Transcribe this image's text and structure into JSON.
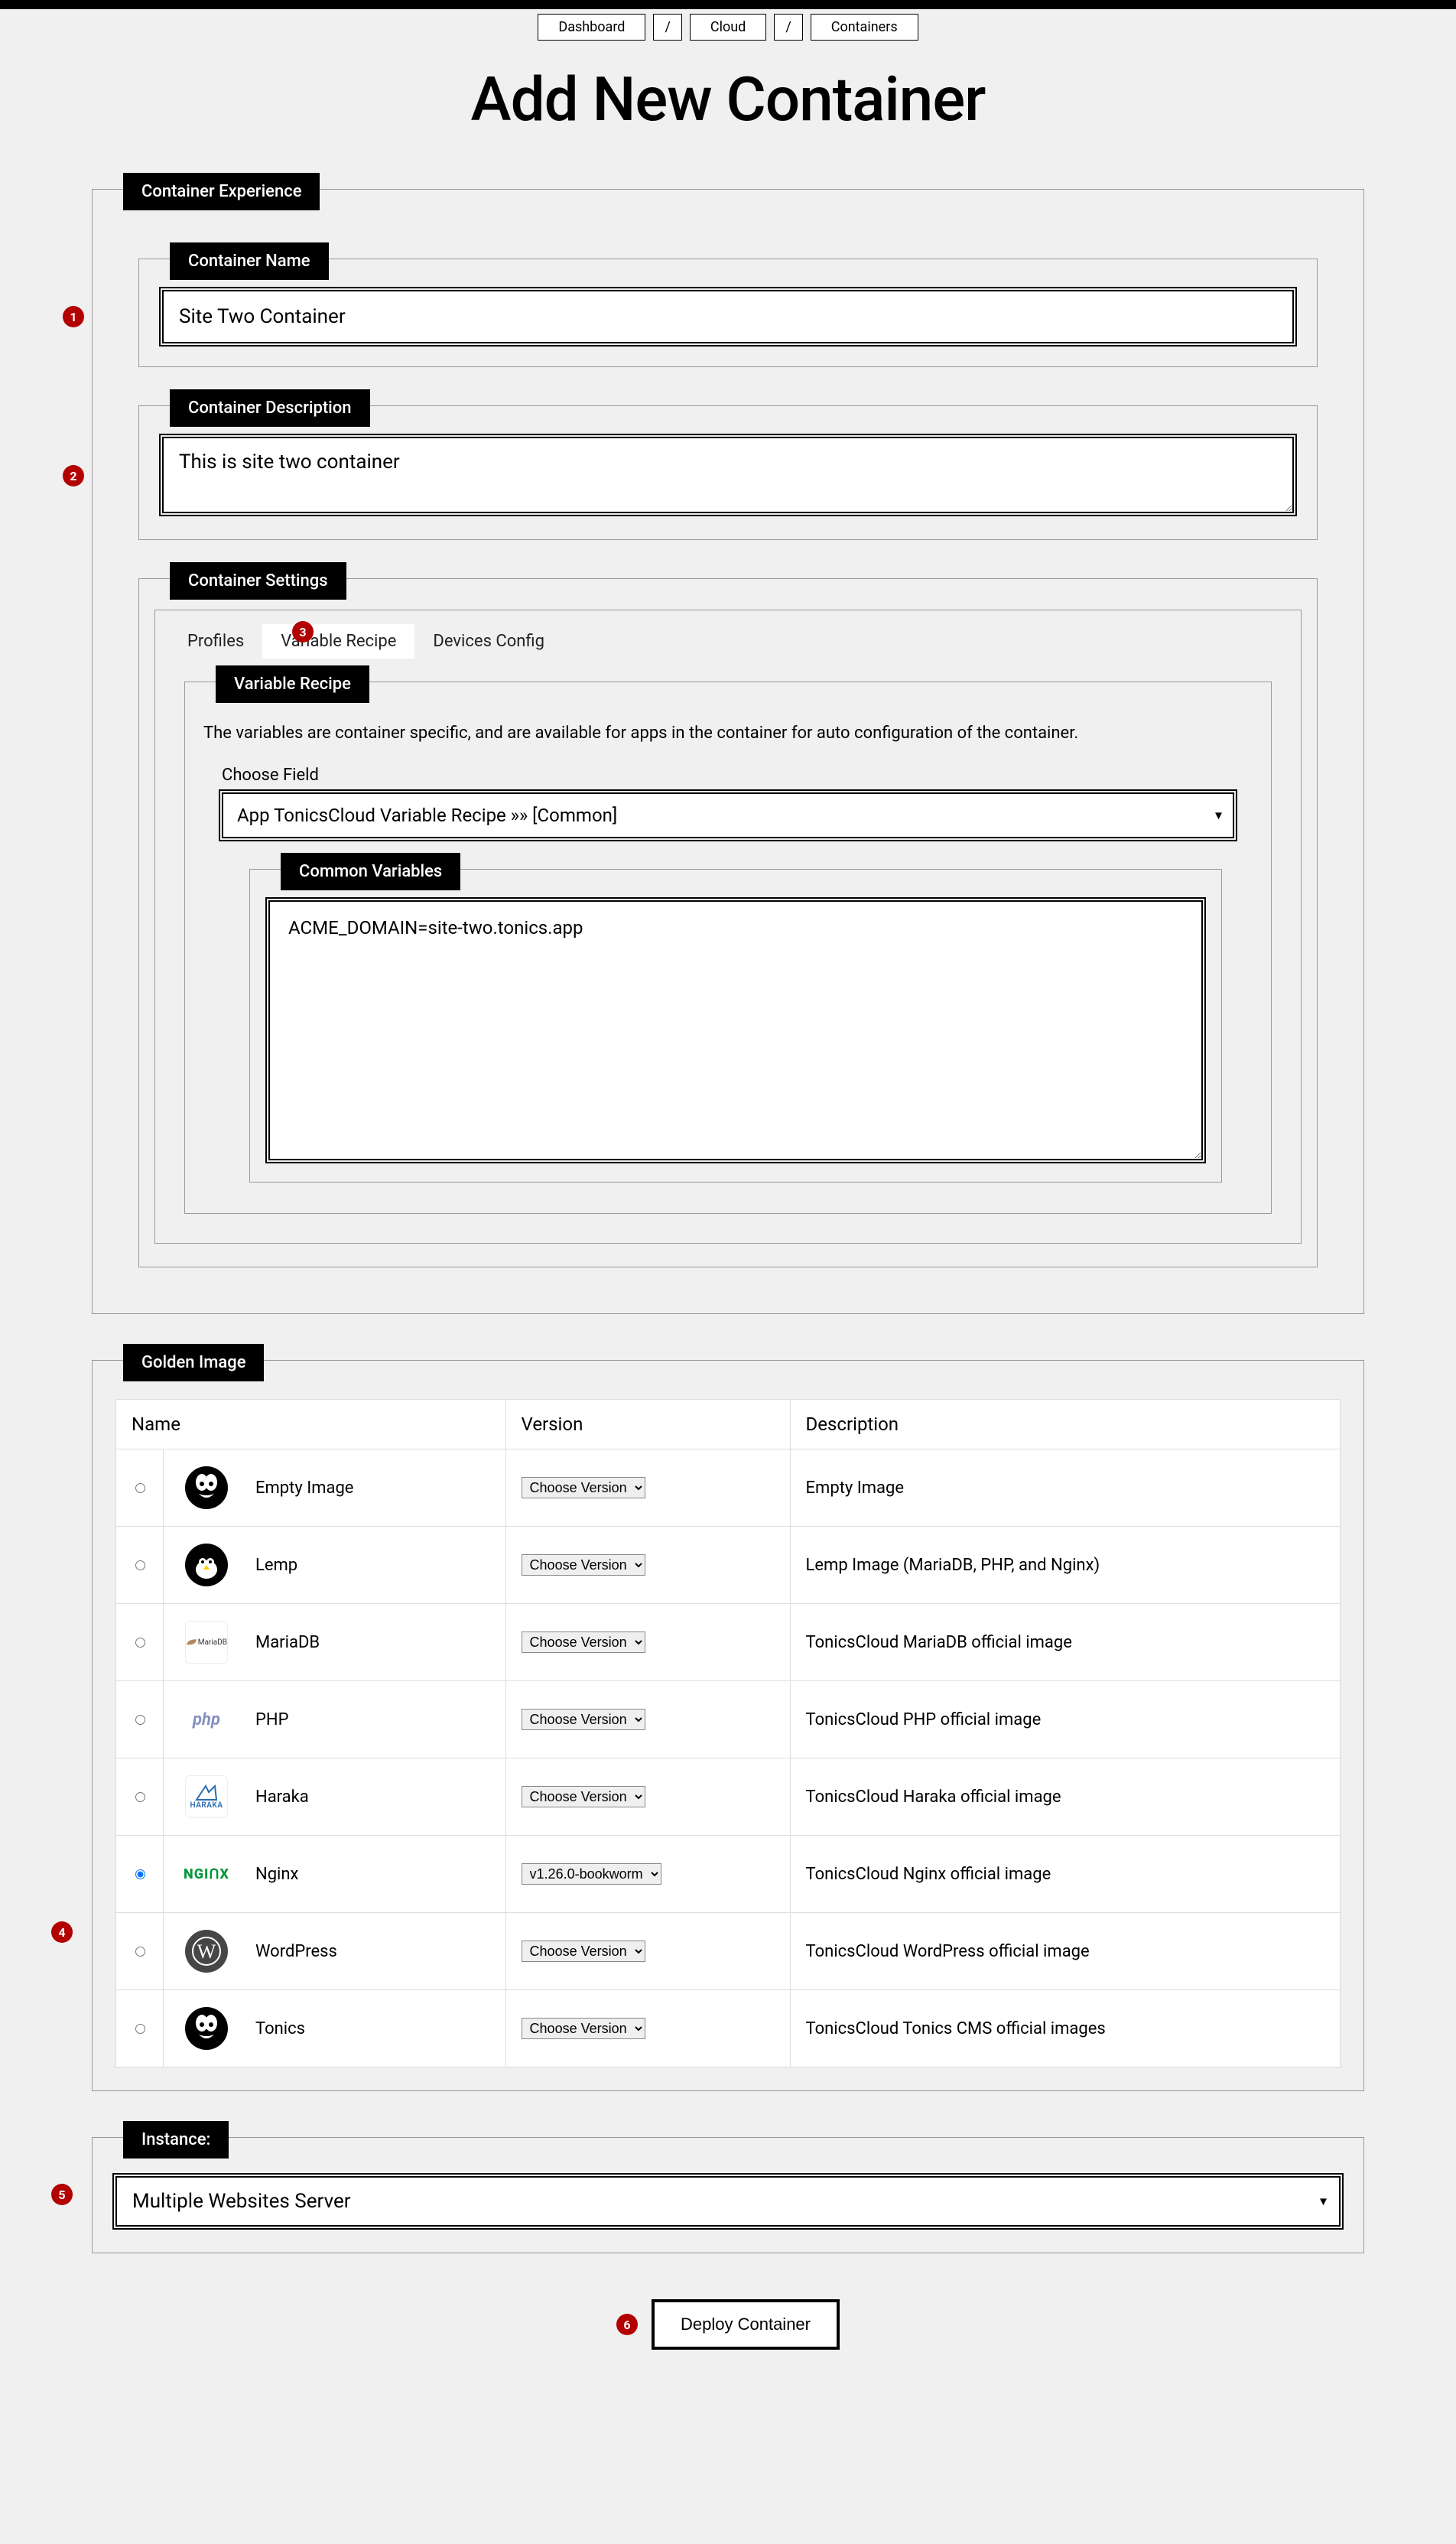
{
  "colors": {
    "page_bg": "#f0f0f0",
    "border_gray": "#999999",
    "black": "#000000",
    "white": "#ffffff",
    "marker_red": "#b30000",
    "nginx_green": "#009639",
    "php_purple": "#8892bf",
    "wp_gray": "#464646"
  },
  "breadcrumb": {
    "items": [
      "Dashboard",
      "/",
      "Cloud",
      "/",
      "Containers"
    ]
  },
  "page_title": "Add New Container",
  "markers": {
    "1": 1,
    "2": 2,
    "3": 3,
    "4": 4,
    "5": 5,
    "6": 6
  },
  "experience": {
    "legend": "Container Experience",
    "name": {
      "legend": "Container Name",
      "value": "Site Two Container"
    },
    "description": {
      "legend": "Container Description",
      "value": "This is site two container"
    },
    "settings": {
      "legend": "Container Settings",
      "tabs": {
        "profiles": "Profiles",
        "variable_recipe": "Variable Recipe",
        "devices_config": "Devices Config",
        "active": "variable_recipe"
      },
      "recipe": {
        "legend": "Variable Recipe",
        "description": "The variables are container specific, and are available for apps in the container for auto configuration of the container.",
        "choose_label": "Choose Field",
        "selected": "App TonicsCloud Variable Recipe »» [Common]",
        "common": {
          "legend": "Common Variables",
          "value": "ACME_DOMAIN=site-two.tonics.app"
        }
      }
    }
  },
  "golden": {
    "legend": "Golden Image",
    "columns": {
      "name": "Name",
      "version": "Version",
      "description": "Description"
    },
    "rows": [
      {
        "key": "empty",
        "name": "Empty Image",
        "icon": "tonics",
        "version_label": "Choose Version",
        "selected": false,
        "description": "Empty Image"
      },
      {
        "key": "lemp",
        "name": "Lemp",
        "icon": "lemp",
        "version_label": "Choose Version",
        "selected": false,
        "description": "Lemp Image (MariaDB, PHP, and Nginx)"
      },
      {
        "key": "mariadb",
        "name": "MariaDB",
        "icon": "mariadb",
        "version_label": "Choose Version",
        "selected": false,
        "description": "TonicsCloud MariaDB official image"
      },
      {
        "key": "php",
        "name": "PHP",
        "icon": "php",
        "version_label": "Choose Version",
        "selected": false,
        "description": "TonicsCloud PHP official image"
      },
      {
        "key": "haraka",
        "name": "Haraka",
        "icon": "haraka",
        "version_label": "Choose Version",
        "selected": false,
        "description": "TonicsCloud Haraka official image"
      },
      {
        "key": "nginx",
        "name": "Nginx",
        "icon": "nginx",
        "version_label": "v1.26.0-bookworm",
        "selected": true,
        "description": "TonicsCloud Nginx official image"
      },
      {
        "key": "wordpress",
        "name": "WordPress",
        "icon": "wordpress",
        "version_label": "Choose Version",
        "selected": false,
        "description": "TonicsCloud WordPress official image"
      },
      {
        "key": "tonics",
        "name": "Tonics",
        "icon": "tonics",
        "version_label": "Choose Version",
        "selected": false,
        "description": "TonicsCloud Tonics CMS official images"
      }
    ]
  },
  "instance": {
    "legend": "Instance:",
    "selected": "Multiple Websites Server"
  },
  "deploy": {
    "label": "Deploy Container"
  }
}
